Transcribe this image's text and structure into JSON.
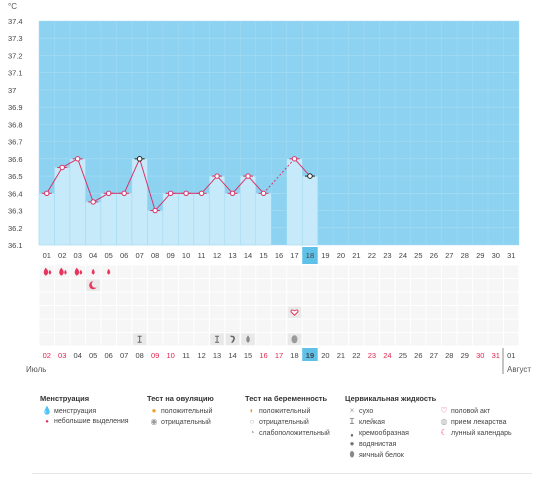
{
  "chart_data": {
    "type": "line",
    "ylabel": "°C",
    "ylim": [
      36.1,
      37.4
    ],
    "y_ticks": [
      "37.4",
      "37.3",
      "37.2",
      "37.1",
      "37",
      "36.9",
      "36.8",
      "36.7",
      "36.6",
      "36.5",
      "36.4",
      "36.3",
      "36.2",
      "36.1"
    ],
    "days": [
      "01",
      "02",
      "03",
      "04",
      "05",
      "06",
      "07",
      "08",
      "09",
      "10",
      "11",
      "12",
      "13",
      "14",
      "15",
      "16",
      "17",
      "18",
      "19",
      "20",
      "21",
      "22",
      "23",
      "24",
      "25",
      "26",
      "27",
      "28",
      "29",
      "30",
      "31"
    ],
    "current_day": "18",
    "series": [
      {
        "values": [
          36.4,
          36.55,
          36.6,
          36.35,
          36.4,
          36.4,
          36.6,
          36.3,
          36.4,
          36.4,
          36.4,
          36.5,
          36.4,
          36.5,
          36.4,
          null,
          36.6,
          36.5,
          null,
          null,
          null,
          null,
          null,
          null,
          null,
          null,
          null,
          null,
          null,
          null,
          null
        ]
      }
    ],
    "circled_points": [
      "07",
      "18"
    ],
    "dashed_segment": [
      "15",
      "17"
    ],
    "colors": {
      "upper_zone": "#8dd3f1",
      "lower_zone": "#d2effb",
      "bar": "#c6eaf9",
      "line": "#d83468",
      "today": "#5fc0e8"
    }
  },
  "icon_rows": {
    "menstruation_row": [
      {
        "day": "01",
        "icon": "menstruation-drop-icon"
      },
      {
        "day": "02",
        "icon": "menstruation-drop-icon"
      },
      {
        "day": "03",
        "icon": "menstruation-drop-icon"
      },
      {
        "day": "04",
        "icon": "spotting-drop-icon"
      },
      {
        "day": "05",
        "icon": "spotting-drop-icon"
      }
    ],
    "moon_day": "04",
    "intercourse_day": "17",
    "fluid_row": [
      {
        "day": "07",
        "icon": "sticky-icon"
      },
      {
        "day": "12",
        "icon": "sticky-icon"
      },
      {
        "day": "13",
        "icon": "creamy-icon"
      },
      {
        "day": "14",
        "icon": "watery-icon"
      },
      {
        "day": "17",
        "icon": "egg-white-icon"
      }
    ]
  },
  "calendar": {
    "dates": [
      "02",
      "03",
      "04",
      "05",
      "06",
      "07",
      "08",
      "09",
      "10",
      "11",
      "12",
      "13",
      "14",
      "15",
      "16",
      "17",
      "18",
      "19",
      "20",
      "21",
      "22",
      "23",
      "24",
      "25",
      "26",
      "27",
      "28",
      "29",
      "30",
      "31",
      "01"
    ],
    "weekend_indices": [
      0,
      1,
      7,
      8,
      14,
      15,
      21,
      22,
      28,
      29
    ],
    "today_index": 17,
    "month_left": "Июль",
    "month_right": "Август"
  },
  "legend": {
    "menstruation": {
      "title": "Менструация",
      "items": [
        "менструация",
        "небольшие выделения"
      ]
    },
    "ovulation_test": {
      "title": "Тест на овуляцию",
      "items": [
        "положительный",
        "отрицательный"
      ]
    },
    "pregnancy_test": {
      "title": "Тест на беременность",
      "items": [
        "положительный",
        "отрицательный",
        "слабоположительный"
      ]
    },
    "cervical_fluid": {
      "title": "Цервикальная жидкость",
      "items": [
        "сухо",
        "клейкая",
        "кремообразная",
        "водянистая",
        "яичный белок"
      ]
    },
    "other": {
      "items": [
        "половой акт",
        "прием лекарства",
        "лунный календарь"
      ]
    }
  }
}
